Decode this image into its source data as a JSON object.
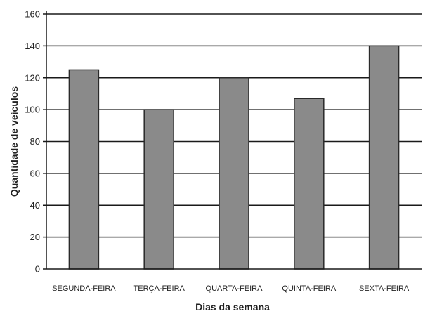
{
  "chart_data": {
    "type": "bar",
    "title": "",
    "xlabel": "Dias da semana",
    "ylabel": "Quantidade de veículos",
    "categories": [
      "SEGUNDA-FEIRA",
      "TERÇA-FEIRA",
      "QUARTA-FEIRA",
      "QUINTA-FEIRA",
      "SEXTA-FEIRA"
    ],
    "values": [
      125,
      100,
      120,
      107,
      140
    ],
    "ylim": [
      0,
      160
    ],
    "yticks": [
      0,
      20,
      40,
      60,
      80,
      100,
      120,
      140,
      160
    ],
    "grid": true,
    "legend": "none",
    "colors": {
      "bar_fill": "#8a8a8a",
      "bar_stroke": "#2a2a2a",
      "grid": "#1a1a1a",
      "axis": "#1a1a1a",
      "text": "#222222"
    }
  }
}
